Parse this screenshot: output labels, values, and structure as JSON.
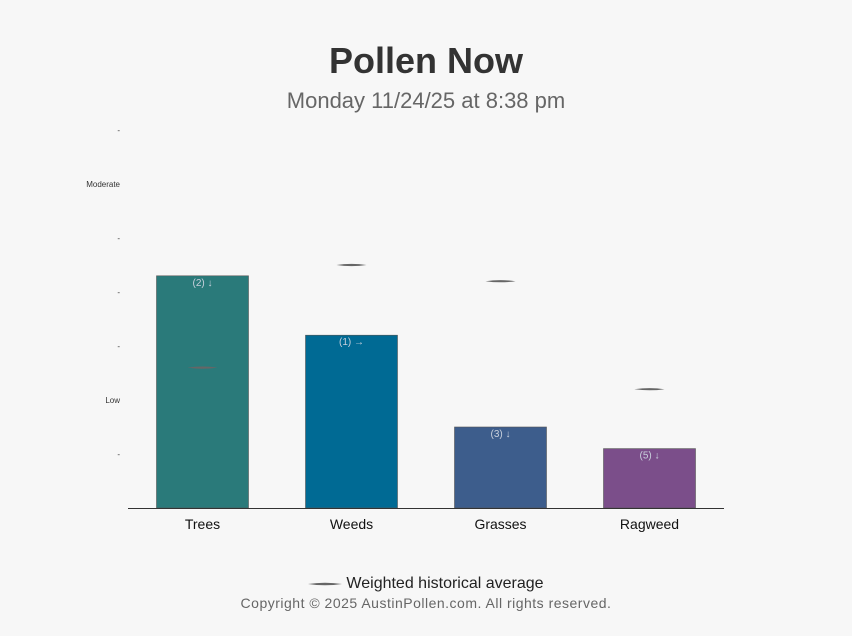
{
  "header": {
    "title": "Pollen Now",
    "subtitle": "Monday 11/24/25 at 8:38 pm"
  },
  "chart_data": {
    "type": "bar",
    "categories": [
      "Trees",
      "Weeds",
      "Grasses",
      "Ragweed"
    ],
    "values": [
      4.3,
      3.2,
      1.5,
      1.1
    ],
    "bar_labels": [
      "(2) ↓",
      "(1) →",
      "(3) ↓",
      "(5) ↓"
    ],
    "bar_colors": [
      "#2a7a7a",
      "#006a94",
      "#3d5d8c",
      "#7b4e8a"
    ],
    "series": [
      {
        "name": "Weighted historical average",
        "values": [
          2.6,
          4.5,
          4.2,
          2.2
        ]
      }
    ],
    "y_ticks": [
      {
        "value": 1,
        "label": "-"
      },
      {
        "value": 2,
        "label": "Low"
      },
      {
        "value": 3,
        "label": "-"
      },
      {
        "value": 4,
        "label": "-"
      },
      {
        "value": 5,
        "label": "-"
      },
      {
        "value": 6,
        "label": "Moderate"
      },
      {
        "value": 7,
        "label": "-"
      }
    ],
    "ylim": [
      0,
      7
    ],
    "xlabel": "",
    "ylabel": "",
    "legend_position": "bottom"
  },
  "legend": {
    "label": "Weighted historical average"
  },
  "footer": {
    "copyright": "Copyright © 2025 AustinPollen.com.  All rights reserved."
  },
  "colors": {
    "background": "#f7f7f7",
    "axis": "#333333",
    "average_marker": "#666666",
    "bar_label": "#c8d0dc"
  }
}
